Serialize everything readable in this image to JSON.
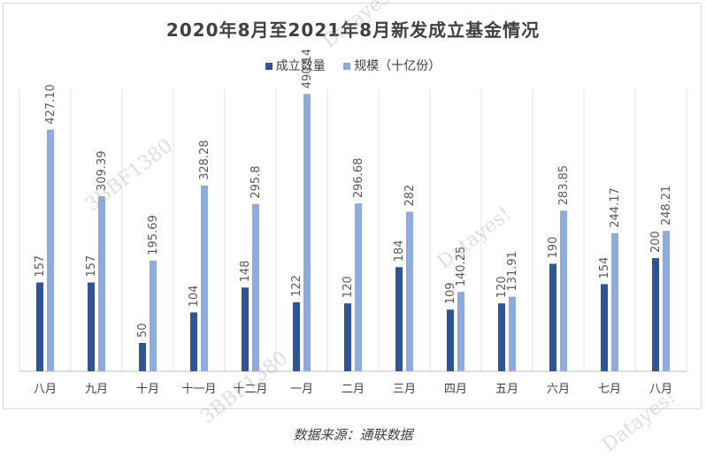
{
  "chart_data": {
    "type": "bar",
    "title": "2020年8月至2021年8月新发成立基金情况",
    "categories": [
      "八月",
      "九月",
      "十月",
      "十一月",
      "十二月",
      "一月",
      "二月",
      "三月",
      "四月",
      "五月",
      "六月",
      "七月",
      "八月"
    ],
    "series": [
      {
        "name": "成立数量",
        "color": "#2f5597",
        "values": [
          157,
          157,
          50,
          104,
          148,
          122,
          120,
          184,
          109,
          120,
          190,
          154,
          200
        ]
      },
      {
        "name": "规模（十亿份）",
        "color": "#8faadc",
        "values": [
          427.1,
          309.39,
          195.69,
          328.28,
          295.8,
          490.14,
          296.68,
          282,
          140.25,
          131.91,
          283.85,
          244.17,
          248.21
        ]
      }
    ],
    "value_labels": [
      [
        "157",
        "157",
        "50",
        "104",
        "148",
        "122",
        "120",
        "184",
        "109",
        "120",
        "190",
        "154",
        "200"
      ],
      [
        "427.10",
        "309.39",
        "195.69",
        "328.28",
        "295.8",
        "490.14",
        "296.68",
        "282",
        "140.25",
        "131.91",
        "283.85",
        "244.17",
        "248.21"
      ]
    ],
    "ylim": [
      0,
      500
    ],
    "grid": "vertical",
    "legend": "top-center",
    "source": "数据来源：通联数据"
  },
  "watermarks": [
    "3BBF1380",
    "Datayes!",
    "3BBF1380",
    "Datayes!",
    "Datayes!"
  ]
}
